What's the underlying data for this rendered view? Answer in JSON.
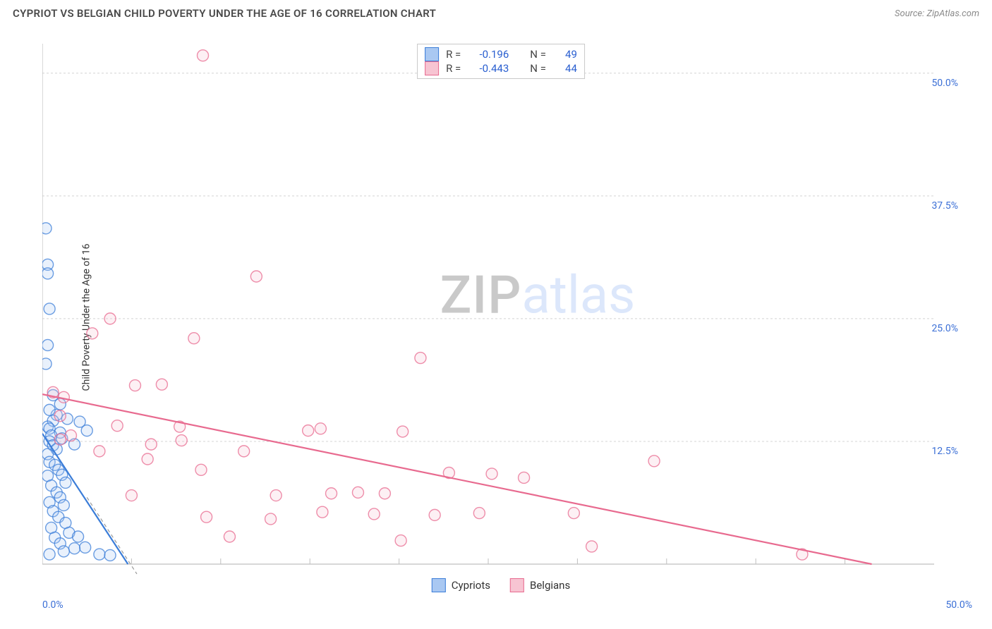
{
  "header": {
    "title": "CYPRIOT VS BELGIAN CHILD POVERTY UNDER THE AGE OF 16 CORRELATION CHART",
    "source_prefix": "Source: ",
    "source_name": "ZipAtlas.com"
  },
  "y_axis_label": "Child Poverty Under the Age of 16",
  "watermark": {
    "part1": "ZIP",
    "part2": "atlas"
  },
  "chart": {
    "type": "scatter",
    "xlim": [
      0,
      50
    ],
    "ylim": [
      0,
      53
    ],
    "x_ticks_minor": [
      5,
      10,
      15,
      20,
      25,
      30,
      35,
      40,
      45
    ],
    "y_gridlines": [
      12.5,
      25.0,
      37.5,
      50.0
    ],
    "y_tick_labels": [
      "12.5%",
      "25.0%",
      "37.5%",
      "50.0%"
    ],
    "x_origin_label": "0.0%",
    "x_max_label": "50.0%",
    "background_color": "#ffffff",
    "grid_color": "#d4d4d4",
    "grid_dash": "3,3",
    "axis_color": "#bfbfbf",
    "tick_label_color": "#3b6fd6",
    "marker_radius": 8,
    "marker_stroke_width": 1.4,
    "marker_fill_opacity": 0.25,
    "trendline_width": 2.2,
    "series": [
      {
        "name": "Cypriots",
        "color": "#3b7dd8",
        "fill": "#a9c8f2",
        "points": [
          [
            0.2,
            34.2
          ],
          [
            0.3,
            30.5
          ],
          [
            0.3,
            29.6
          ],
          [
            0.4,
            26.0
          ],
          [
            0.3,
            22.3
          ],
          [
            0.2,
            20.4
          ],
          [
            0.6,
            17.2
          ],
          [
            1.0,
            16.3
          ],
          [
            0.8,
            15.2
          ],
          [
            0.4,
            15.7
          ],
          [
            0.6,
            14.6
          ],
          [
            0.3,
            14.0
          ],
          [
            0.4,
            13.8
          ],
          [
            1.4,
            14.8
          ],
          [
            2.1,
            14.5
          ],
          [
            1.0,
            13.4
          ],
          [
            0.5,
            13.1
          ],
          [
            2.5,
            13.6
          ],
          [
            0.4,
            12.5
          ],
          [
            0.6,
            12.1
          ],
          [
            0.8,
            11.7
          ],
          [
            0.3,
            11.2
          ],
          [
            1.1,
            12.8
          ],
          [
            1.8,
            12.2
          ],
          [
            0.4,
            10.4
          ],
          [
            0.7,
            10.1
          ],
          [
            0.9,
            9.6
          ],
          [
            1.1,
            9.1
          ],
          [
            0.3,
            9.0
          ],
          [
            1.3,
            8.3
          ],
          [
            0.5,
            8.0
          ],
          [
            0.8,
            7.3
          ],
          [
            1.0,
            6.8
          ],
          [
            0.4,
            6.3
          ],
          [
            1.2,
            6.0
          ],
          [
            0.6,
            5.4
          ],
          [
            0.9,
            4.8
          ],
          [
            1.3,
            4.2
          ],
          [
            0.5,
            3.7
          ],
          [
            1.5,
            3.2
          ],
          [
            0.7,
            2.7
          ],
          [
            1.0,
            2.1
          ],
          [
            1.8,
            1.6
          ],
          [
            2.4,
            1.7
          ],
          [
            2.0,
            2.8
          ],
          [
            3.2,
            1.0
          ],
          [
            3.8,
            0.9
          ],
          [
            1.2,
            1.3
          ],
          [
            0.4,
            1.0
          ]
        ],
        "trendline": {
          "x1": 0,
          "y1": 13.3,
          "x2": 4.8,
          "y2": 0
        },
        "trendline_dashed_ext": {
          "x1": 2.5,
          "y1": 6.8,
          "x2": 5.3,
          "y2": -1
        },
        "stats": {
          "r_label": "R =",
          "r_value": "-0.196",
          "n_label": "N =",
          "n_value": "49"
        }
      },
      {
        "name": "Belgians",
        "color": "#e86a8f",
        "fill": "#f7c4d2",
        "points": [
          [
            9.0,
            51.8
          ],
          [
            12.0,
            29.3
          ],
          [
            3.8,
            25.0
          ],
          [
            2.8,
            23.5
          ],
          [
            5.2,
            18.2
          ],
          [
            6.7,
            18.3
          ],
          [
            8.5,
            23.0
          ],
          [
            21.2,
            21.0
          ],
          [
            0.6,
            17.5
          ],
          [
            1.2,
            17.0
          ],
          [
            1.0,
            15.1
          ],
          [
            4.2,
            14.1
          ],
          [
            7.7,
            14.0
          ],
          [
            14.9,
            13.6
          ],
          [
            15.6,
            13.8
          ],
          [
            20.2,
            13.5
          ],
          [
            1.0,
            12.7
          ],
          [
            5.9,
            10.7
          ],
          [
            6.1,
            12.2
          ],
          [
            7.8,
            12.6
          ],
          [
            11.3,
            11.5
          ],
          [
            8.9,
            9.6
          ],
          [
            34.3,
            10.5
          ],
          [
            25.2,
            9.2
          ],
          [
            16.2,
            7.2
          ],
          [
            17.7,
            7.3
          ],
          [
            13.1,
            7.0
          ],
          [
            19.2,
            7.2
          ],
          [
            15.7,
            5.3
          ],
          [
            18.6,
            5.1
          ],
          [
            22.0,
            5.0
          ],
          [
            24.5,
            5.2
          ],
          [
            29.8,
            5.2
          ],
          [
            9.2,
            4.8
          ],
          [
            12.8,
            4.6
          ],
          [
            10.5,
            2.8
          ],
          [
            20.1,
            2.4
          ],
          [
            30.8,
            1.8
          ],
          [
            42.6,
            1.0
          ],
          [
            1.6,
            13.1
          ],
          [
            3.2,
            11.5
          ],
          [
            5.0,
            7.0
          ],
          [
            22.8,
            9.3
          ],
          [
            27.0,
            8.8
          ]
        ],
        "trendline": {
          "x1": 0,
          "y1": 17.3,
          "x2": 46.5,
          "y2": 0
        },
        "stats": {
          "r_label": "R =",
          "r_value": "-0.443",
          "n_label": "N =",
          "n_value": "44"
        }
      }
    ]
  },
  "legend_bottom": [
    {
      "label": "Cypriots",
      "color": "#3b7dd8",
      "fill": "#a9c8f2"
    },
    {
      "label": "Belgians",
      "color": "#e86a8f",
      "fill": "#f7c4d2"
    }
  ]
}
